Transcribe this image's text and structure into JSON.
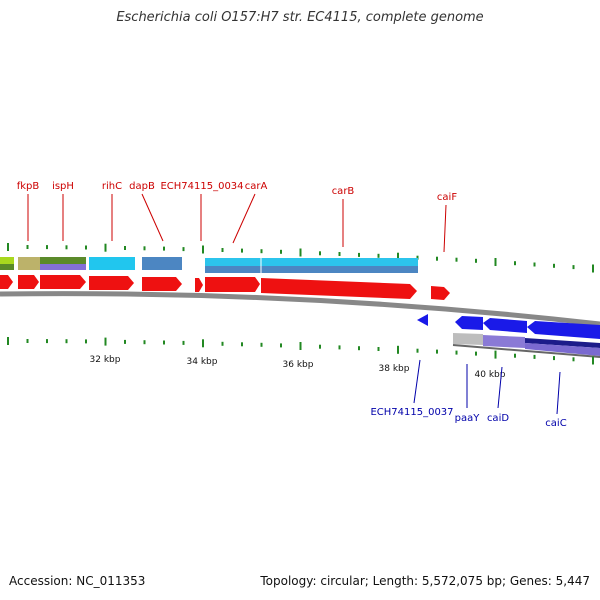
{
  "title": "Escherichia coli O157:H7 str. EC4115, complete genome",
  "footer": {
    "accession": "Accession: NC_011353",
    "summary": "Topology: circular; Length: 5,572,075 bp; Genes: 5,447"
  },
  "ticks": [
    "32 kbp",
    "34 kbp",
    "36 kbp",
    "38 kbp",
    "40 kbp"
  ],
  "genes_top": [
    "fkpB",
    "ispH",
    "rihC",
    "dapB",
    "ECH74115_0034",
    "carA",
    "carB",
    "caiF"
  ],
  "genes_bottom": [
    "ECH74115_0037",
    "paaY",
    "caiD",
    "caiC"
  ],
  "colors": {
    "forward_gene": "#ff0000",
    "reverse_gene": "#0000ff",
    "top_label": "#cc0000",
    "bottom_label": "#0000aa",
    "backbone": "#888888",
    "tick": "#228822"
  }
}
